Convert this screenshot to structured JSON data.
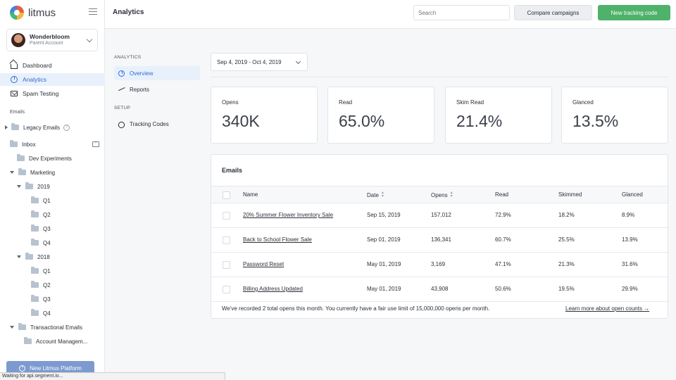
{
  "brand": {
    "name": "litmus"
  },
  "account": {
    "name": "Wonderbloom",
    "subtitle": "Parent Account"
  },
  "nav": [
    {
      "label": "Dashboard"
    },
    {
      "label": "Analytics"
    },
    {
      "label": "Spam Testing"
    }
  ],
  "emails_section_label": "Emails",
  "tree": {
    "legacy": "Legacy Emails",
    "inbox": "Inbox",
    "dev": "Dev Experiments",
    "marketing": "Marketing",
    "y2019": "2019",
    "y2018": "2018",
    "q1": "Q1",
    "q2": "Q2",
    "q3": "Q3",
    "q4": "Q4",
    "transactional": "Transactional Emails",
    "account_mgmt": "Account Managem..."
  },
  "new_platform": "New Litmus Platform",
  "status_bar": "Waiting for api.segment.io...",
  "header": {
    "title": "Analytics",
    "search_placeholder": "Search",
    "compare_label": "Compare campaigns",
    "new_label": "New tracking code"
  },
  "subnav": {
    "analytics_label": "ANALYTICS",
    "overview": "Overview",
    "reports": "Reports",
    "setup_label": "SETUP",
    "tracking": "Tracking Codes"
  },
  "date_range": "Sep 4, 2019 - Oct 4, 2019",
  "stats": [
    {
      "label": "Opens",
      "value": "340K"
    },
    {
      "label": "Read",
      "value": "65.0%"
    },
    {
      "label": "Skim Read",
      "value": "21.4%"
    },
    {
      "label": "Glanced",
      "value": "13.5%"
    }
  ],
  "emails": {
    "title": "Emails",
    "columns": {
      "name": "Name",
      "date": "Date",
      "opens": "Opens",
      "read": "Read",
      "skimmed": "Skimmed",
      "glanced": "Glanced"
    },
    "rows": [
      {
        "name": "20% Summer Flower Inventory Sale",
        "date": "Sep 15, 2019",
        "opens": "157,012",
        "read": "72.9%",
        "skimmed": "18.2%",
        "glanced": "8.9%"
      },
      {
        "name": "Back to School Flower Sale",
        "date": "Sep 01, 2019",
        "opens": "136,341",
        "read": "60.7%",
        "skimmed": "25.5%",
        "glanced": "13.9%"
      },
      {
        "name": "Password Reset",
        "date": "May 01, 2019",
        "opens": "3,169",
        "read": "47.1%",
        "skimmed": "21.3%",
        "glanced": "31.6%"
      },
      {
        "name": "Billing Address Updated",
        "date": "May 01, 2019",
        "opens": "43,908",
        "read": "50.6%",
        "skimmed": "19.5%",
        "glanced": "29.9%"
      }
    ],
    "footer_text": "We've recorded 2 total opens this month. You currently have a fair use limit of 15,000,000 opens per month.",
    "footer_link": "Learn more about open counts →"
  }
}
